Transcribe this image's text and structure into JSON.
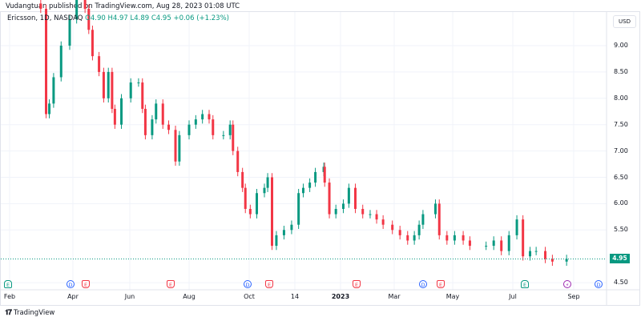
{
  "header": {
    "published": "Vudangtuan published on TradingView.com, Aug 28, 2023 01:08 UTC"
  },
  "legend": {
    "symbol": "Ericsson, 1D, NASDAQ",
    "open": "O4.90",
    "high": "H4.97",
    "low": "L4.89",
    "close": "C4.95",
    "change": "+0.06 (+1.23%)"
  },
  "currency": "USD",
  "last_price": "4.95",
  "colors": {
    "up": "#089981",
    "down": "#f23645",
    "grid": "#f0f3fa"
  },
  "chart_data": {
    "type": "candlestick",
    "ylim": [
      4.5,
      9.9
    ],
    "y_ticks": [
      "9.00",
      "8.50",
      "8.00",
      "7.50",
      "7.00",
      "6.50",
      "6.00",
      "5.50",
      "4.50"
    ],
    "x_ticks": [
      "Feb",
      "Apr",
      "Jun",
      "Aug",
      "Oct",
      "14",
      "2023",
      "Mar",
      "May",
      "Jul",
      "Sep"
    ],
    "closes": [
      [
        "2022-03-02",
        9.7
      ],
      [
        "2022-03-07",
        7.7
      ],
      [
        "2022-03-10",
        7.9
      ],
      [
        "2022-03-14",
        8.4
      ],
      [
        "2022-03-21",
        9.0
      ],
      [
        "2022-03-29",
        9.5
      ],
      [
        "2022-04-05",
        9.9
      ],
      [
        "2022-04-14",
        9.7
      ],
      [
        "2022-04-18",
        9.3
      ],
      [
        "2022-04-22",
        8.8
      ],
      [
        "2022-04-29",
        8.5
      ],
      [
        "2022-05-04",
        8.0
      ],
      [
        "2022-05-09",
        8.5
      ],
      [
        "2022-05-13",
        7.8
      ],
      [
        "2022-05-16",
        7.5
      ],
      [
        "2022-05-23",
        8.0
      ],
      [
        "2022-06-02",
        8.3
      ],
      [
        "2022-06-10",
        8.3
      ],
      [
        "2022-06-14",
        7.8
      ],
      [
        "2022-06-17",
        7.3
      ],
      [
        "2022-06-24",
        7.6
      ],
      [
        "2022-06-28",
        7.9
      ],
      [
        "2022-07-05",
        7.5
      ],
      [
        "2022-07-11",
        7.4
      ],
      [
        "2022-07-18",
        6.8
      ],
      [
        "2022-07-22",
        7.3
      ],
      [
        "2022-08-01",
        7.5
      ],
      [
        "2022-08-08",
        7.6
      ],
      [
        "2022-08-15",
        7.7
      ],
      [
        "2022-08-22",
        7.6
      ],
      [
        "2022-08-26",
        7.3
      ],
      [
        "2022-09-06",
        7.3
      ],
      [
        "2022-09-13",
        7.5
      ],
      [
        "2022-09-16",
        7.0
      ],
      [
        "2022-09-21",
        6.6
      ],
      [
        "2022-09-26",
        6.3
      ],
      [
        "2022-09-29",
        5.9
      ],
      [
        "2022-10-04",
        5.8
      ],
      [
        "2022-10-10",
        6.2
      ],
      [
        "2022-10-17",
        6.3
      ],
      [
        "2022-10-20",
        6.5
      ],
      [
        "2022-10-24",
        5.2
      ],
      [
        "2022-10-28",
        5.4
      ],
      [
        "2022-11-04",
        5.5
      ],
      [
        "2022-11-11",
        5.6
      ],
      [
        "2022-11-18",
        6.2
      ],
      [
        "2022-11-23",
        6.3
      ],
      [
        "2022-11-30",
        6.4
      ],
      [
        "2022-12-06",
        6.6
      ],
      [
        "2022-12-15",
        6.7
      ],
      [
        "2022-12-16",
        6.4
      ],
      [
        "2022-12-21",
        5.8
      ],
      [
        "2022-12-28",
        5.9
      ],
      [
        "2023-01-05",
        6.0
      ],
      [
        "2023-01-11",
        6.3
      ],
      [
        "2023-01-18",
        5.9
      ],
      [
        "2023-01-26",
        5.8
      ],
      [
        "2023-02-03",
        5.8
      ],
      [
        "2023-02-10",
        5.7
      ],
      [
        "2023-02-17",
        5.6
      ],
      [
        "2023-02-27",
        5.5
      ],
      [
        "2023-03-07",
        5.4
      ],
      [
        "2023-03-15",
        5.3
      ],
      [
        "2023-03-22",
        5.4
      ],
      [
        "2023-03-27",
        5.6
      ],
      [
        "2023-03-31",
        5.8
      ],
      [
        "2023-04-13",
        6.0
      ],
      [
        "2023-04-17",
        5.4
      ],
      [
        "2023-04-25",
        5.3
      ],
      [
        "2023-05-03",
        5.4
      ],
      [
        "2023-05-12",
        5.3
      ],
      [
        "2023-05-19",
        5.2
      ],
      [
        "2023-06-05",
        5.2
      ],
      [
        "2023-06-13",
        5.3
      ],
      [
        "2023-06-21",
        5.1
      ],
      [
        "2023-06-29",
        5.4
      ],
      [
        "2023-07-07",
        5.7
      ],
      [
        "2023-07-13",
        5.0
      ],
      [
        "2023-07-20",
        5.1
      ],
      [
        "2023-07-26",
        5.1
      ],
      [
        "2023-08-04",
        4.95
      ],
      [
        "2023-08-11",
        4.9
      ],
      [
        "2023-08-25",
        4.95
      ]
    ]
  },
  "events": [
    {
      "type": "E",
      "kind": "eg"
    },
    {
      "type": "D",
      "kind": "d"
    },
    {
      "type": "E",
      "kind": "e"
    },
    {
      "type": "E",
      "kind": "e"
    },
    {
      "type": "D",
      "kind": "d"
    },
    {
      "type": "E",
      "kind": "e"
    },
    {
      "type": "E",
      "kind": "e"
    },
    {
      "type": "D",
      "kind": "d"
    },
    {
      "type": "E",
      "kind": "e"
    },
    {
      "type": "E",
      "kind": "eg"
    },
    {
      "type": "⚡",
      "kind": "s"
    },
    {
      "type": "D",
      "kind": "d"
    }
  ],
  "brand": {
    "logo_text": "TradingView"
  }
}
